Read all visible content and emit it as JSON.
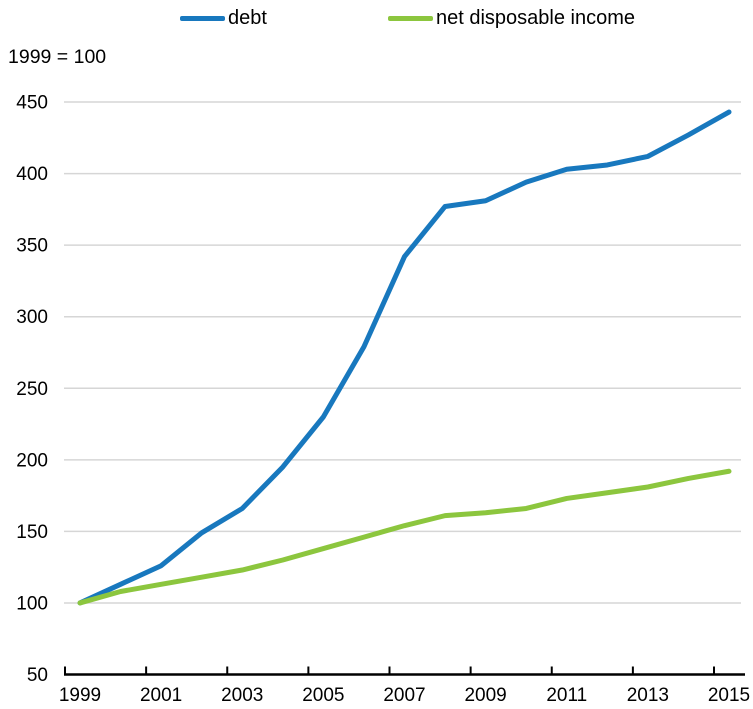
{
  "axis_note": "1999 = 100",
  "legend": [
    {
      "label": "debt",
      "color": "#1878be"
    },
    {
      "label": "net disposable income",
      "color": "#8cc63e"
    }
  ],
  "colors": {
    "debt_line": "#1878be",
    "income_line": "#8cc63e",
    "gridline": "#d6d6d6",
    "axis": "#000000"
  },
  "chart_data": {
    "type": "line",
    "title": "",
    "xlabel": "",
    "ylabel": "1999 = 100",
    "grid": true,
    "legend_position": "top",
    "x": [
      1999,
      2000,
      2001,
      2002,
      2003,
      2004,
      2005,
      2006,
      2007,
      2008,
      2009,
      2010,
      2011,
      2012,
      2013,
      2014,
      2015
    ],
    "series": [
      {
        "name": "debt",
        "color": "#1878be",
        "values": [
          100,
          113,
          126,
          149,
          166,
          195,
          230,
          279,
          342,
          377,
          381,
          394,
          403,
          406,
          412,
          427,
          443
        ]
      },
      {
        "name": "net disposable income",
        "color": "#8cc63e",
        "values": [
          100,
          108,
          113,
          118,
          123,
          130,
          138,
          146,
          154,
          161,
          163,
          166,
          173,
          177,
          181,
          187,
          192
        ]
      }
    ],
    "ylim": [
      50,
      450
    ],
    "yticks": [
      50,
      100,
      150,
      200,
      250,
      300,
      350,
      400,
      450
    ],
    "xticks": [
      1999,
      2001,
      2003,
      2005,
      2007,
      2009,
      2011,
      2013,
      2015
    ]
  }
}
